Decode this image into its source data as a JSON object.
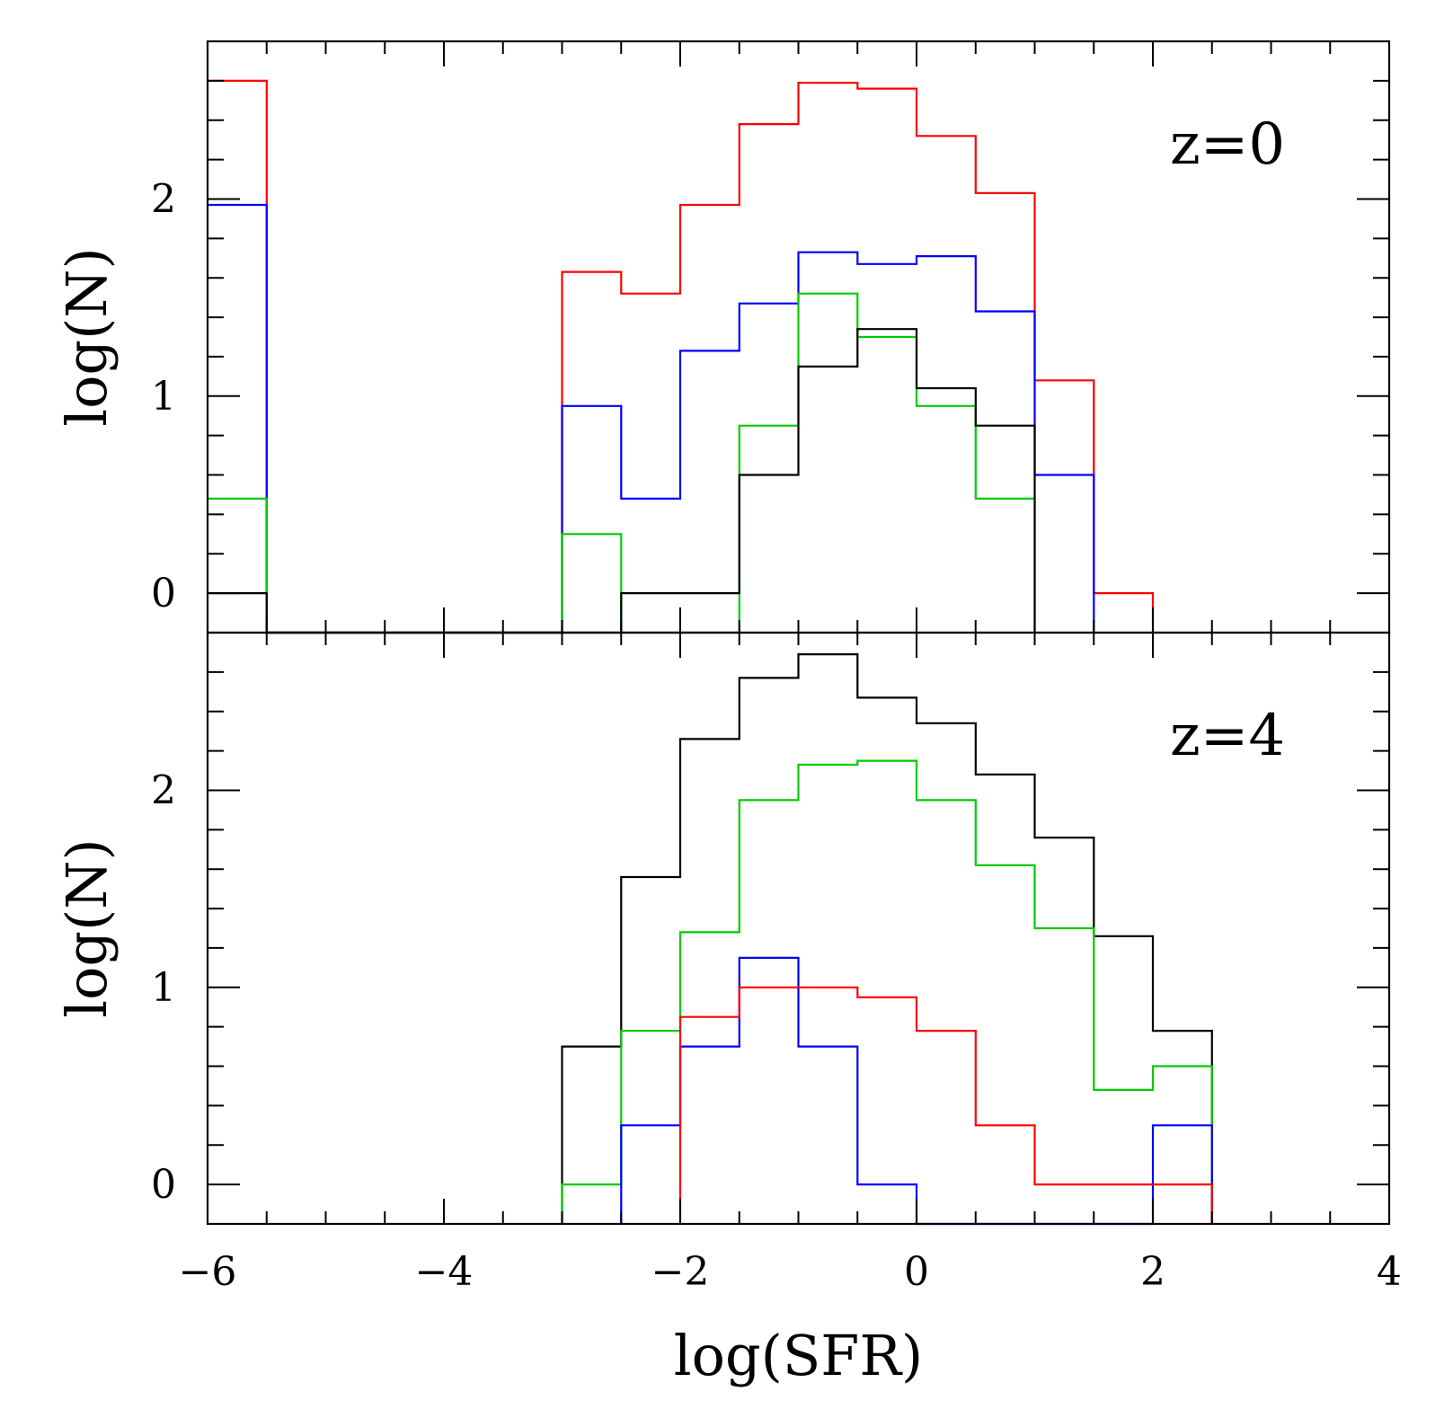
{
  "figure": {
    "xlabel": "log(SFR)",
    "ylabel": "log(N)"
  },
  "colors": {
    "black": "#000000",
    "red": "#ff0000",
    "blue": "#0000ff",
    "green": "#00cc00"
  },
  "chart_data": [
    {
      "type": "step",
      "panel_label": "z=0",
      "xlabel": "log(SFR)",
      "ylabel": "log(N)",
      "xlim": [
        -6,
        4
      ],
      "ylim": [
        -0.2,
        2.8
      ],
      "xticks": [
        -6,
        -4,
        -2,
        0,
        2,
        4
      ],
      "yticks": [
        0,
        1,
        2
      ],
      "series": [
        {
          "name": "red",
          "color": "#ff0000",
          "points": [
            [
              -6,
              2.6
            ],
            [
              -5.5,
              2.6
            ],
            [
              -5.5,
              -0.2
            ],
            [
              -3,
              -0.2
            ],
            [
              -3,
              1.63
            ],
            [
              -2.5,
              1.63
            ],
            [
              -2.5,
              1.52
            ],
            [
              -2,
              1.52
            ],
            [
              -2,
              1.97
            ],
            [
              -1.5,
              1.97
            ],
            [
              -1.5,
              2.38
            ],
            [
              -1,
              2.38
            ],
            [
              -1,
              2.59
            ],
            [
              -0.5,
              2.59
            ],
            [
              -0.5,
              2.56
            ],
            [
              0,
              2.56
            ],
            [
              0,
              2.32
            ],
            [
              0.5,
              2.32
            ],
            [
              0.5,
              2.03
            ],
            [
              1,
              2.03
            ],
            [
              1,
              1.08
            ],
            [
              1.5,
              1.08
            ],
            [
              1.5,
              0
            ],
            [
              2,
              0
            ],
            [
              2,
              -0.2
            ]
          ]
        },
        {
          "name": "blue",
          "color": "#0000ff",
          "points": [
            [
              -6,
              1.97
            ],
            [
              -5.5,
              1.97
            ],
            [
              -5.5,
              -0.2
            ],
            [
              -3,
              -0.2
            ],
            [
              -3,
              0.95
            ],
            [
              -2.5,
              0.95
            ],
            [
              -2.5,
              0.48
            ],
            [
              -2,
              0.48
            ],
            [
              -2,
              1.23
            ],
            [
              -1.5,
              1.23
            ],
            [
              -1.5,
              1.47
            ],
            [
              -1,
              1.47
            ],
            [
              -1,
              1.73
            ],
            [
              -0.5,
              1.73
            ],
            [
              -0.5,
              1.67
            ],
            [
              0,
              1.67
            ],
            [
              0,
              1.71
            ],
            [
              0.5,
              1.71
            ],
            [
              0.5,
              1.43
            ],
            [
              1,
              1.43
            ],
            [
              1,
              0.6
            ],
            [
              1.5,
              0.6
            ],
            [
              1.5,
              -0.2
            ]
          ]
        },
        {
          "name": "green",
          "color": "#00cc00",
          "points": [
            [
              -6,
              0.48
            ],
            [
              -5.5,
              0.48
            ],
            [
              -5.5,
              -0.2
            ],
            [
              -3,
              -0.2
            ],
            [
              -3,
              0.3
            ],
            [
              -2.5,
              0.3
            ],
            [
              -2.5,
              -0.2
            ],
            [
              -1.5,
              -0.2
            ],
            [
              -1.5,
              0.85
            ],
            [
              -1,
              0.85
            ],
            [
              -1,
              1.52
            ],
            [
              -0.5,
              1.52
            ],
            [
              -0.5,
              1.3
            ],
            [
              0,
              1.3
            ],
            [
              0,
              0.95
            ],
            [
              0.5,
              0.95
            ],
            [
              0.5,
              0.48
            ],
            [
              1,
              0.48
            ],
            [
              1,
              -0.2
            ]
          ]
        },
        {
          "name": "black",
          "color": "#000000",
          "points": [
            [
              -6,
              0
            ],
            [
              -5.5,
              0
            ],
            [
              -5.5,
              -0.2
            ],
            [
              -2.5,
              -0.2
            ],
            [
              -2.5,
              0
            ],
            [
              -1.5,
              0
            ],
            [
              -1.5,
              0.6
            ],
            [
              -1,
              0.6
            ],
            [
              -1,
              1.15
            ],
            [
              -0.5,
              1.15
            ],
            [
              -0.5,
              1.34
            ],
            [
              0,
              1.34
            ],
            [
              0,
              1.04
            ],
            [
              0.5,
              1.04
            ],
            [
              0.5,
              0.85
            ],
            [
              1,
              0.85
            ],
            [
              1,
              -0.2
            ]
          ]
        }
      ]
    },
    {
      "type": "step",
      "panel_label": "z=4",
      "xlabel": "log(SFR)",
      "ylabel": "log(N)",
      "xlim": [
        -6,
        4
      ],
      "ylim": [
        -0.2,
        2.8
      ],
      "xticks": [
        -6,
        -4,
        -2,
        0,
        2,
        4
      ],
      "yticks": [
        0,
        1,
        2
      ],
      "series": [
        {
          "name": "black",
          "color": "#000000",
          "points": [
            [
              -3,
              -0.2
            ],
            [
              -3,
              0.7
            ],
            [
              -2.5,
              0.7
            ],
            [
              -2.5,
              1.56
            ],
            [
              -2,
              1.56
            ],
            [
              -2,
              2.26
            ],
            [
              -1.5,
              2.26
            ],
            [
              -1.5,
              2.57
            ],
            [
              -1,
              2.57
            ],
            [
              -1,
              2.69
            ],
            [
              -0.5,
              2.69
            ],
            [
              -0.5,
              2.47
            ],
            [
              0,
              2.47
            ],
            [
              0,
              2.34
            ],
            [
              0.5,
              2.34
            ],
            [
              0.5,
              2.08
            ],
            [
              1,
              2.08
            ],
            [
              1,
              1.76
            ],
            [
              1.5,
              1.76
            ],
            [
              1.5,
              1.26
            ],
            [
              2,
              1.26
            ],
            [
              2,
              0.78
            ],
            [
              2.5,
              0.78
            ],
            [
              2.5,
              -0.2
            ]
          ]
        },
        {
          "name": "green",
          "color": "#00cc00",
          "points": [
            [
              -3,
              -0.2
            ],
            [
              -3,
              0
            ],
            [
              -2.5,
              0
            ],
            [
              -2.5,
              0.78
            ],
            [
              -2,
              0.78
            ],
            [
              -2,
              1.28
            ],
            [
              -1.5,
              1.28
            ],
            [
              -1.5,
              1.95
            ],
            [
              -1,
              1.95
            ],
            [
              -1,
              2.13
            ],
            [
              -0.5,
              2.13
            ],
            [
              -0.5,
              2.15
            ],
            [
              0,
              2.15
            ],
            [
              0,
              1.95
            ],
            [
              0.5,
              1.95
            ],
            [
              0.5,
              1.62
            ],
            [
              1,
              1.62
            ],
            [
              1,
              1.3
            ],
            [
              1.5,
              1.3
            ],
            [
              1.5,
              0.48
            ],
            [
              2,
              0.48
            ],
            [
              2,
              0.6
            ],
            [
              2.5,
              0.6
            ],
            [
              2.5,
              -0.2
            ]
          ]
        },
        {
          "name": "blue",
          "color": "#0000ff",
          "points": [
            [
              -2.5,
              -0.2
            ],
            [
              -2.5,
              0.3
            ],
            [
              -2,
              0.3
            ],
            [
              -2,
              0.7
            ],
            [
              -1.5,
              0.7
            ],
            [
              -1.5,
              1.15
            ],
            [
              -1,
              1.15
            ],
            [
              -1,
              0.7
            ],
            [
              -0.5,
              0.7
            ],
            [
              -0.5,
              0
            ],
            [
              0,
              0
            ],
            [
              0,
              -0.2
            ],
            [
              2,
              -0.2
            ],
            [
              2,
              0.3
            ],
            [
              2.5,
              0.3
            ],
            [
              2.5,
              -0.2
            ]
          ]
        },
        {
          "name": "red",
          "color": "#ff0000",
          "points": [
            [
              -2,
              -0.2
            ],
            [
              -2,
              0.85
            ],
            [
              -1.5,
              0.85
            ],
            [
              -1.5,
              1
            ],
            [
              -1,
              1
            ],
            [
              -1,
              1
            ],
            [
              -0.5,
              1
            ],
            [
              -0.5,
              0.95
            ],
            [
              0,
              0.95
            ],
            [
              0,
              0.78
            ],
            [
              0.5,
              0.78
            ],
            [
              0.5,
              0.3
            ],
            [
              1,
              0.3
            ],
            [
              1,
              0
            ],
            [
              2.5,
              0
            ],
            [
              2.5,
              -0.2
            ]
          ]
        }
      ]
    }
  ]
}
